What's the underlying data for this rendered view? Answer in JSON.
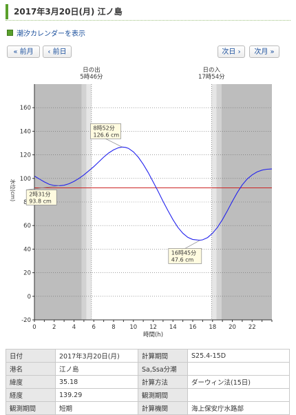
{
  "page": {
    "title": "2017年3月20日(月) 江ノ島",
    "calendar_link": "潮汐カレンダーを表示"
  },
  "nav": {
    "prev_month": "« 前月",
    "prev_day": "‹ 前日",
    "next_day": "次日 ›",
    "next_month": "次月 »"
  },
  "chart_data": {
    "type": "line",
    "title": "",
    "xlabel": "時間(h)",
    "ylabel": "水位(cm)",
    "xlim": [
      0,
      24
    ],
    "ylim": [
      -20,
      180
    ],
    "xticks": [
      0,
      2,
      4,
      6,
      8,
      10,
      12,
      14,
      16,
      18,
      20,
      22
    ],
    "yticks": [
      -20,
      0,
      20,
      40,
      60,
      80,
      100,
      120,
      140,
      160
    ],
    "reference_level": 92,
    "colors": {
      "curve": "#2222ee",
      "reference": "#cc2222",
      "night": "#bdbdbd",
      "day": "#ffffff"
    },
    "series": [
      {
        "x": [
          0,
          0.5,
          1,
          1.5,
          2,
          2.52,
          3,
          3.5,
          4,
          4.5,
          5,
          5.5,
          6,
          6.5,
          7,
          7.5,
          8,
          8.5,
          8.87,
          9.2,
          9.5,
          10,
          10.5,
          11,
          11.5,
          12,
          12.5,
          13,
          13.5,
          14,
          14.5,
          15,
          15.5,
          16,
          16.5,
          16.75,
          17,
          17.5,
          18,
          18.5,
          19,
          19.5,
          20,
          20.5,
          21,
          21.5,
          22,
          22.5,
          23,
          23.5,
          24
        ],
        "y": [
          102,
          99.5,
          97,
          95,
          94,
          93.8,
          94.2,
          95.5,
          97.5,
          100,
          103,
          106.5,
          110,
          114,
          118,
          121.5,
          124.2,
          126,
          126.6,
          126.3,
          125.5,
          122.5,
          118,
          112,
          105,
          97,
          89,
          80.5,
          72.5,
          65,
          58.5,
          53.5,
          50,
          48.2,
          47.7,
          47.6,
          47.9,
          49.8,
          53.5,
          58.5,
          65,
          72.5,
          80.5,
          88,
          94.5,
          99.5,
          103,
          105.5,
          107,
          107.8,
          108
        ]
      }
    ],
    "annotations": [
      {
        "time": "8時52分",
        "level": "126.6 cm",
        "x": 8.87,
        "y": 126.6
      },
      {
        "time": "2時31分",
        "level": "93.8 cm",
        "x": 2.52,
        "y": 93.8
      },
      {
        "time": "16時45分",
        "level": "47.6 cm",
        "x": 16.75,
        "y": 47.6
      }
    ],
    "sunrise": {
      "label": "日の出",
      "time": "5時46分",
      "hour": 5.767
    },
    "sunset": {
      "label": "日の入",
      "time": "17時54分",
      "hour": 17.9
    }
  },
  "info_table": [
    {
      "l1": "日付",
      "v1": "2017年3月20日(月)",
      "l2": "計算期間",
      "v2": "S25.4-15D"
    },
    {
      "l1": "港名",
      "v1": "江ノ島",
      "l2": "Sa,Ssa分潮",
      "v2": ""
    },
    {
      "l1": "緯度",
      "v1": "35.18",
      "l2": "計算方法",
      "v2": "ダーウィン法(15日)"
    },
    {
      "l1": "経度",
      "v1": "139.29",
      "l2": "観測期間",
      "v2": ""
    },
    {
      "l1": "観測期間",
      "v1": "短期",
      "l2": "計算機関",
      "v2": "海上保安庁水路部"
    }
  ]
}
